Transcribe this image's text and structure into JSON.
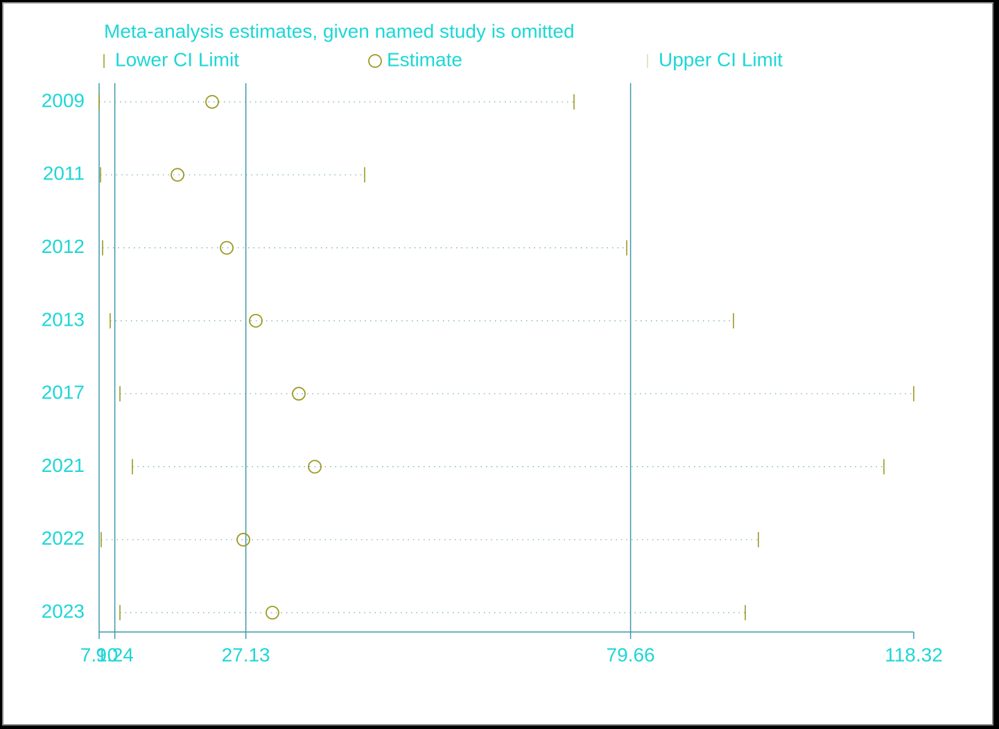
{
  "chart_data": {
    "type": "interval",
    "title": "Meta-analysis estimates, given named study is omitted",
    "categories": [
      "2009",
      "2011",
      "2012",
      "2013",
      "2017",
      "2021",
      "2022",
      "2023"
    ],
    "series": [
      {
        "name": "Lower CI Limit",
        "color": "#9a9a22",
        "values": [
          7.1,
          7.29,
          7.57,
          8.61,
          9.94,
          11.64,
          7.38,
          9.94
        ]
      },
      {
        "name": "Estimate",
        "color": "#9a9a22",
        "values": [
          22.53,
          17.8,
          24.52,
          28.49,
          34.36,
          36.54,
          26.79,
          30.76
        ]
      },
      {
        "name": "Upper CI Limit",
        "color": "#9a9a22",
        "values": [
          71.94,
          43.35,
          79.13,
          93.71,
          118.32,
          114.25,
          97.11,
          95.32
        ]
      }
    ],
    "reference_lines": [
      9.24,
      27.13,
      79.66
    ],
    "xlim": [
      7.1,
      118.32
    ],
    "xticks": [
      {
        "value": 7.1,
        "label": "7.10"
      },
      9.24,
      27.13,
      79.66,
      118.32
    ]
  }
}
